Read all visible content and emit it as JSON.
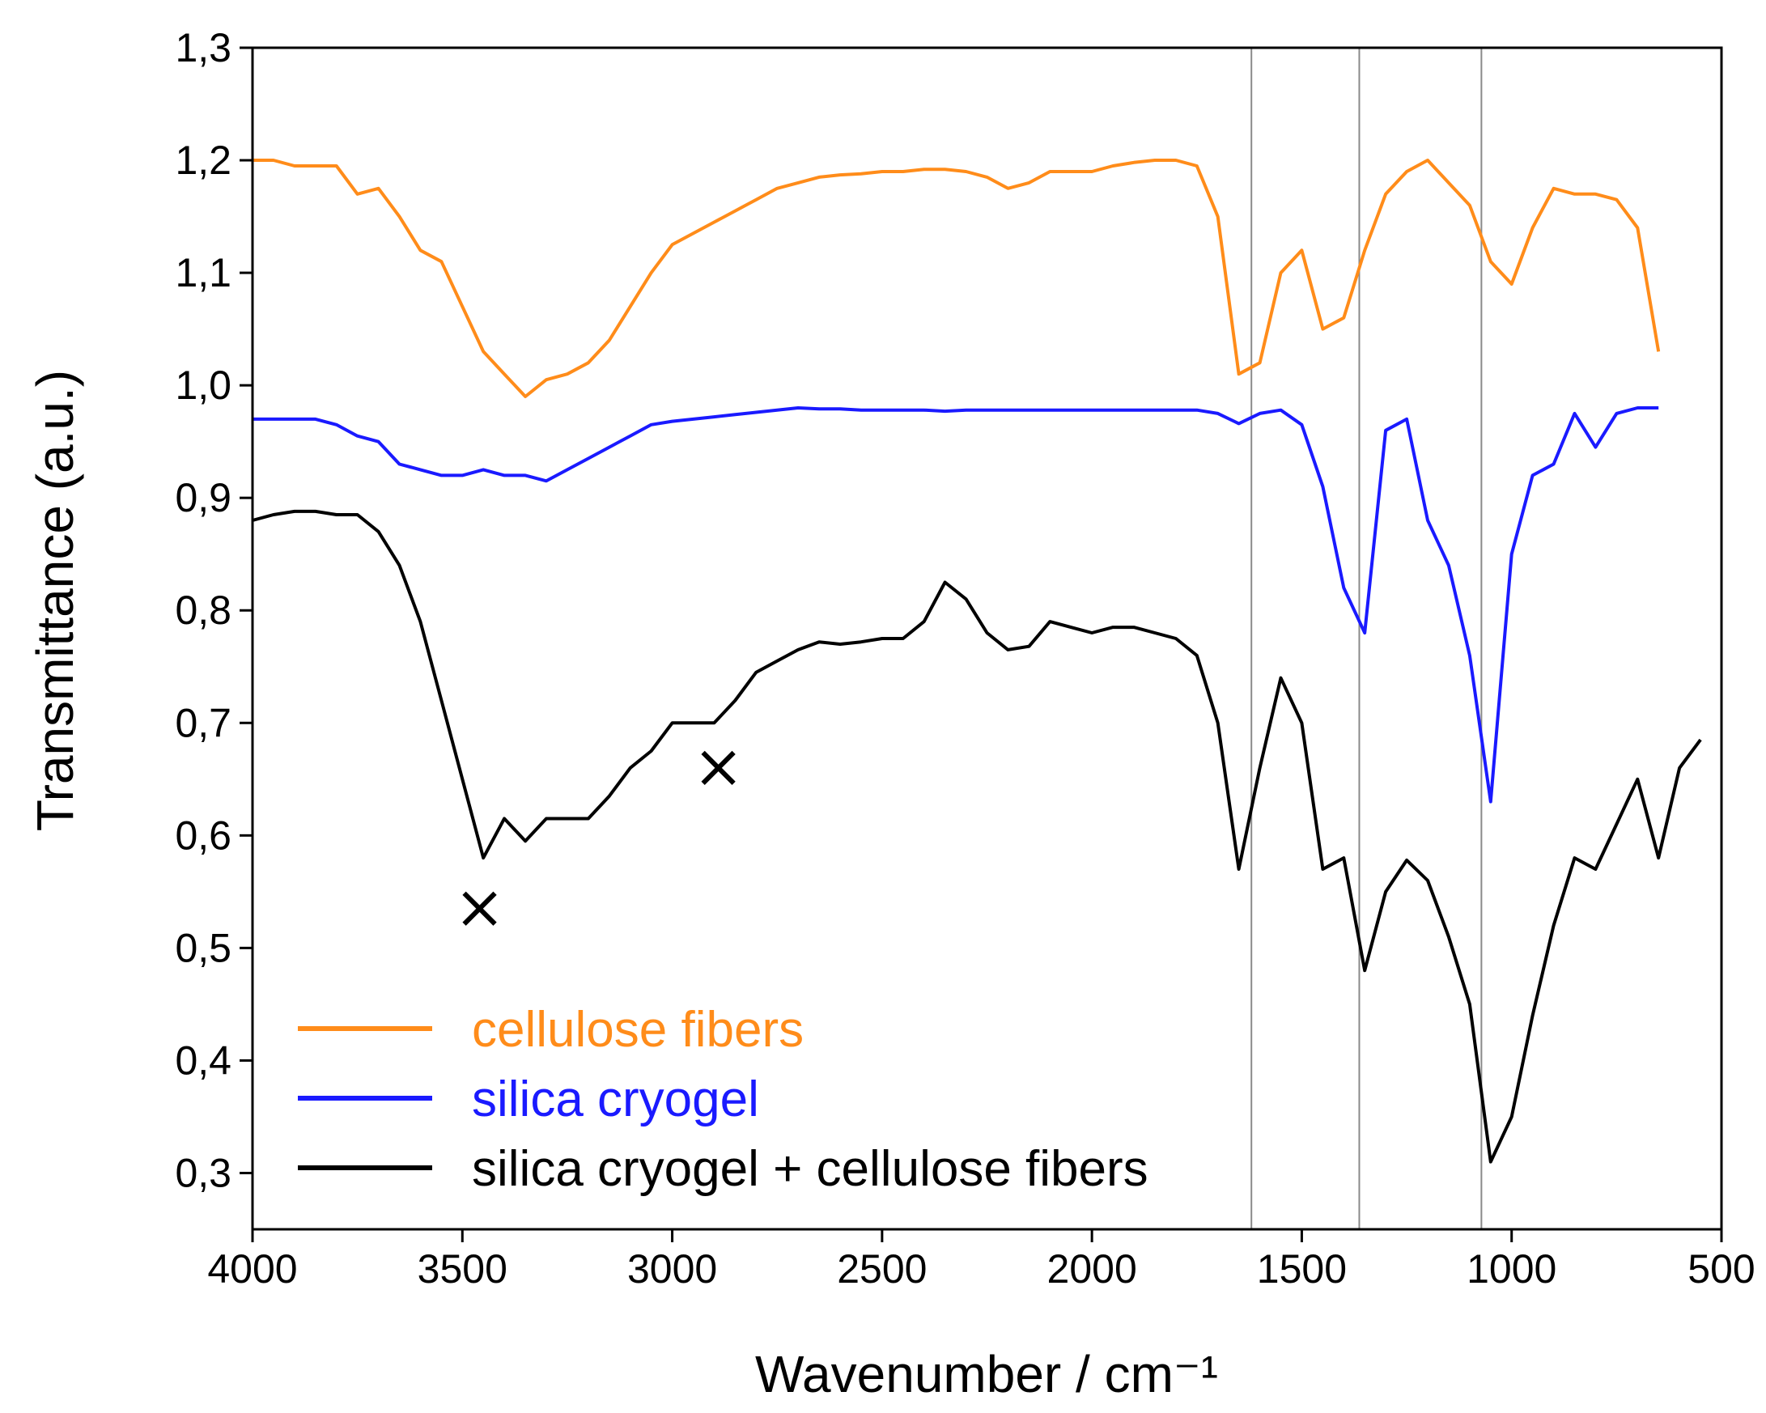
{
  "chart_data": {
    "type": "line",
    "xlabel": "Wavenumber  / cm⁻¹",
    "ylabel": "Transmittance (a.u.)",
    "xlim": [
      4000,
      500
    ],
    "xticks": [
      4000,
      3500,
      3000,
      2500,
      2000,
      1500,
      1000,
      500
    ],
    "ylim": [
      0.25,
      1.3
    ],
    "yticks": [
      {
        "value": 0.3,
        "label": "0,3"
      },
      {
        "value": 0.4,
        "label": "0,4"
      },
      {
        "value": 0.5,
        "label": "0,5"
      },
      {
        "value": 0.6,
        "label": "0,6"
      },
      {
        "value": 0.7,
        "label": "0,7"
      },
      {
        "value": 0.8,
        "label": "0,8"
      },
      {
        "value": 0.9,
        "label": "0,9"
      },
      {
        "value": 1.0,
        "label": "1,0"
      },
      {
        "value": 1.1,
        "label": "1,1"
      },
      {
        "value": 1.2,
        "label": "1,2"
      },
      {
        "value": 1.3,
        "label": "1,3"
      }
    ],
    "legend": "lower left",
    "vlines": [
      1620,
      1363,
      1072
    ],
    "vline_color": "#8a8a8a",
    "markers": [
      {
        "x": 3459,
        "y": 0.535
      },
      {
        "x": 2890,
        "y": 0.66
      }
    ],
    "x": [
      4000,
      3950,
      3900,
      3850,
      3800,
      3750,
      3700,
      3650,
      3600,
      3550,
      3500,
      3450,
      3400,
      3350,
      3300,
      3250,
      3200,
      3150,
      3100,
      3050,
      3000,
      2950,
      2900,
      2850,
      2800,
      2750,
      2700,
      2650,
      2600,
      2550,
      2500,
      2450,
      2400,
      2350,
      2300,
      2250,
      2200,
      2150,
      2100,
      2050,
      2000,
      1950,
      1900,
      1850,
      1800,
      1750,
      1700,
      1650,
      1600,
      1550,
      1500,
      1450,
      1400,
      1350,
      1300,
      1250,
      1200,
      1150,
      1100,
      1050,
      1000,
      950,
      900,
      850,
      800,
      750,
      700,
      650,
      600,
      550
    ],
    "series": [
      {
        "name": "cellulose fibers",
        "color": "#ff8c1a",
        "values": [
          1.2,
          1.2,
          1.195,
          1.195,
          1.195,
          1.17,
          1.175,
          1.15,
          1.12,
          1.11,
          1.07,
          1.03,
          1.01,
          0.99,
          1.005,
          1.01,
          1.02,
          1.04,
          1.07,
          1.1,
          1.125,
          1.135,
          1.145,
          1.155,
          1.165,
          1.175,
          1.18,
          1.185,
          1.187,
          1.188,
          1.19,
          1.19,
          1.192,
          1.192,
          1.19,
          1.185,
          1.175,
          1.18,
          1.19,
          1.19,
          1.19,
          1.195,
          1.198,
          1.2,
          1.2,
          1.195,
          1.15,
          1.01,
          1.02,
          1.1,
          1.12,
          1.05,
          1.06,
          1.12,
          1.17,
          1.19,
          1.2,
          1.18,
          1.16,
          1.11,
          1.09,
          1.14,
          1.175,
          1.17,
          1.17,
          1.165,
          1.14,
          1.03,
          null,
          null
        ]
      },
      {
        "name": "silica cryogel",
        "color": "#1a1aff",
        "values": [
          0.97,
          0.97,
          0.97,
          0.97,
          0.965,
          0.955,
          0.95,
          0.93,
          0.925,
          0.92,
          0.92,
          0.925,
          0.92,
          0.92,
          0.915,
          0.925,
          0.935,
          0.945,
          0.955,
          0.965,
          0.968,
          0.97,
          0.972,
          0.974,
          0.976,
          0.978,
          0.98,
          0.979,
          0.979,
          0.978,
          0.978,
          0.978,
          0.978,
          0.977,
          0.978,
          0.978,
          0.978,
          0.978,
          0.978,
          0.978,
          0.978,
          0.978,
          0.978,
          0.978,
          0.978,
          0.978,
          0.975,
          0.966,
          0.975,
          0.978,
          0.965,
          0.91,
          0.82,
          0.78,
          0.96,
          0.97,
          0.88,
          0.84,
          0.76,
          0.63,
          0.85,
          0.92,
          0.93,
          0.975,
          0.945,
          0.975,
          0.98,
          0.98,
          null,
          null
        ]
      },
      {
        "name": "silica cryogel + cellulose fibers",
        "color": "#000000",
        "values": [
          0.88,
          0.885,
          0.888,
          0.888,
          0.885,
          0.885,
          0.87,
          0.84,
          0.79,
          0.72,
          0.65,
          0.58,
          0.615,
          0.595,
          0.615,
          0.615,
          0.615,
          0.635,
          0.66,
          0.675,
          0.7,
          0.7,
          0.7,
          0.72,
          0.745,
          0.755,
          0.765,
          0.772,
          0.77,
          0.772,
          0.775,
          0.775,
          0.79,
          0.825,
          0.81,
          0.78,
          0.765,
          0.768,
          0.79,
          0.785,
          0.78,
          0.785,
          0.785,
          0.78,
          0.775,
          0.76,
          0.7,
          0.57,
          0.66,
          0.74,
          0.7,
          0.57,
          0.58,
          0.48,
          0.55,
          0.578,
          0.56,
          0.51,
          0.45,
          0.31,
          0.35,
          0.44,
          0.52,
          0.58,
          0.57,
          0.61,
          0.65,
          0.58,
          0.66,
          0.685
        ]
      }
    ]
  }
}
